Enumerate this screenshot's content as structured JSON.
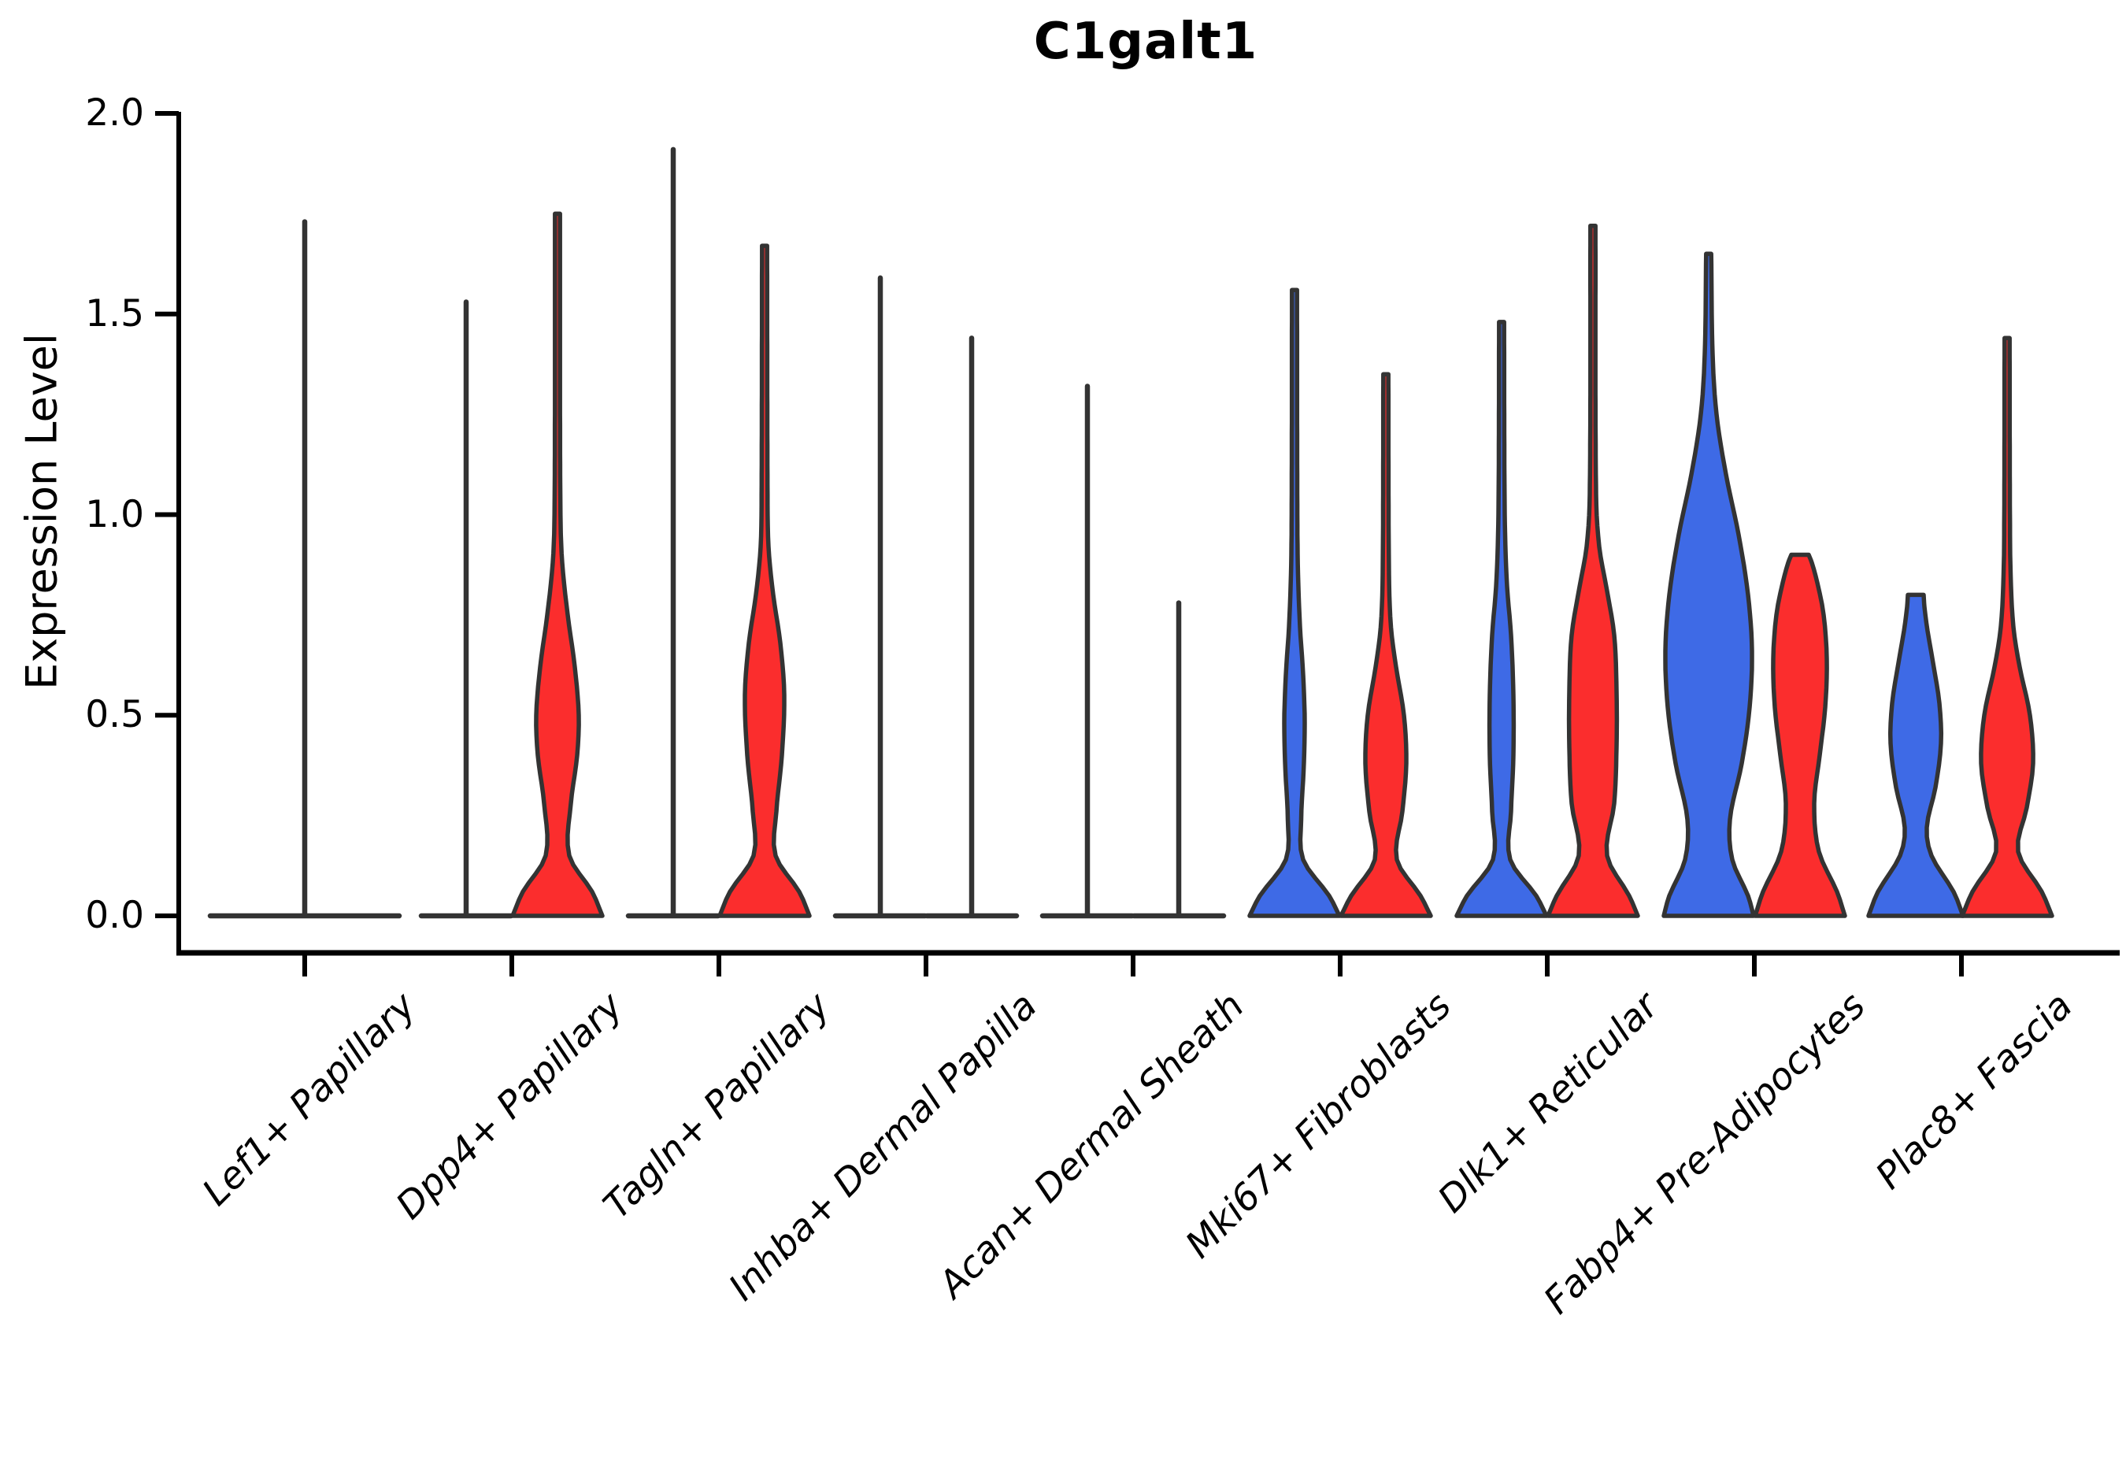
{
  "chart_data": {
    "type": "violin",
    "title": "C1galt1",
    "xlabel": "",
    "ylabel": "Expression Level",
    "ylim": [
      0.0,
      2.0
    ],
    "yticks": [
      0.0,
      0.5,
      1.0,
      1.5,
      2.0
    ],
    "grid": false,
    "legend": "none",
    "split_colors": {
      "blue": "#3E6AE6",
      "red": "#FB2D2D"
    },
    "outline_color": "#333333",
    "categories": [
      "Lef1+ Papillary",
      "Dpp4+ Papillary",
      "Tagln+ Papillary",
      "Inhba+ Dermal Papilla",
      "Acan+ Dermal Sheath",
      "Mki67+ Fibroblasts",
      "Dlk1+ Reticular",
      "Fabp4+ Pre-Adipocytes",
      "Plac8+ Fascia"
    ],
    "groups": [
      {
        "category": "Lef1+ Papillary",
        "violins": [
          {
            "split": "single",
            "fill": "none",
            "shape": "spike",
            "max": 1.73,
            "base_halfwidth": 120
          }
        ]
      },
      {
        "category": "Dpp4+ Papillary",
        "violins": [
          {
            "split": "blue",
            "fill": "blue",
            "shape": "spike",
            "max": 1.53,
            "base_halfwidth": 57
          },
          {
            "split": "red",
            "fill": "red",
            "shape": "violin",
            "max": 1.75,
            "profile": [
              [
                0,
                57
              ],
              [
                0.06,
                44
              ],
              [
                0.15,
                15
              ],
              [
                0.28,
                17
              ],
              [
                0.4,
                25
              ],
              [
                0.5,
                27
              ],
              [
                0.62,
                22
              ],
              [
                0.75,
                13
              ],
              [
                0.88,
                6
              ],
              [
                1.0,
                3.8
              ],
              [
                1.4,
                3.2
              ],
              [
                1.75,
                3.2
              ]
            ]
          }
        ]
      },
      {
        "category": "Tagln+ Papillary",
        "violins": [
          {
            "split": "blue",
            "fill": "blue",
            "shape": "spike",
            "max": 1.91,
            "base_halfwidth": 57
          },
          {
            "split": "red",
            "fill": "red",
            "shape": "violin",
            "max": 1.67,
            "profile": [
              [
                0,
                57
              ],
              [
                0.06,
                44
              ],
              [
                0.15,
                14
              ],
              [
                0.26,
                15
              ],
              [
                0.4,
                22
              ],
              [
                0.55,
                25
              ],
              [
                0.68,
                20
              ],
              [
                0.8,
                11
              ],
              [
                0.92,
                5
              ],
              [
                1.05,
                3.8
              ],
              [
                1.67,
                3.2
              ]
            ]
          }
        ]
      },
      {
        "category": "Inhba+ Dermal Papilla",
        "violins": [
          {
            "split": "blue",
            "fill": "blue",
            "shape": "spike",
            "max": 1.59,
            "base_halfwidth": 57
          },
          {
            "split": "red",
            "fill": "red",
            "shape": "spike",
            "max": 1.44,
            "base_halfwidth": 57
          }
        ]
      },
      {
        "category": "Acan+ Dermal Sheath",
        "violins": [
          {
            "split": "blue",
            "fill": "blue",
            "shape": "spike",
            "max": 1.32,
            "base_halfwidth": 57
          },
          {
            "split": "red",
            "fill": "red",
            "shape": "spike",
            "max": 0.78,
            "base_halfwidth": 57
          }
        ]
      },
      {
        "category": "Mki67+ Fibroblasts",
        "violins": [
          {
            "split": "blue",
            "fill": "blue",
            "shape": "violin",
            "max": 1.56,
            "profile": [
              [
                0,
                57
              ],
              [
                0.05,
                44
              ],
              [
                0.14,
                11
              ],
              [
                0.24,
                8.5
              ],
              [
                0.36,
                11.5
              ],
              [
                0.48,
                13
              ],
              [
                0.6,
                11
              ],
              [
                0.72,
                7
              ],
              [
                0.85,
                4.5
              ],
              [
                1.0,
                3.6
              ],
              [
                1.56,
                3.2
              ]
            ]
          },
          {
            "split": "red",
            "fill": "red",
            "shape": "violin",
            "max": 1.35,
            "profile": [
              [
                0,
                57
              ],
              [
                0.05,
                44
              ],
              [
                0.14,
                14
              ],
              [
                0.26,
                21
              ],
              [
                0.38,
                26
              ],
              [
                0.5,
                23
              ],
              [
                0.62,
                13
              ],
              [
                0.72,
                6.5
              ],
              [
                0.85,
                4
              ],
              [
                1.35,
                3.2
              ]
            ]
          }
        ]
      },
      {
        "category": "Dlk1+ Reticular",
        "violins": [
          {
            "split": "blue",
            "fill": "blue",
            "shape": "violin",
            "max": 1.48,
            "profile": [
              [
                0,
                57
              ],
              [
                0.05,
                44
              ],
              [
                0.14,
                11
              ],
              [
                0.26,
                12
              ],
              [
                0.4,
                15
              ],
              [
                0.55,
                15
              ],
              [
                0.7,
                12
              ],
              [
                0.82,
                7
              ],
              [
                0.95,
                4.5
              ],
              [
                1.1,
                3.6
              ],
              [
                1.48,
                3.2
              ]
            ]
          },
          {
            "split": "red",
            "fill": "red",
            "shape": "violin",
            "max": 1.72,
            "profile": [
              [
                0,
                57
              ],
              [
                0.05,
                46
              ],
              [
                0.15,
                18
              ],
              [
                0.28,
                27
              ],
              [
                0.42,
                30
              ],
              [
                0.56,
                30
              ],
              [
                0.7,
                27
              ],
              [
                0.82,
                17
              ],
              [
                0.92,
                8
              ],
              [
                1.05,
                4
              ],
              [
                1.72,
                3.2
              ]
            ]
          }
        ]
      },
      {
        "category": "Fabp4+ Pre-Adipocytes",
        "violins": [
          {
            "split": "blue",
            "fill": "blue",
            "shape": "violin",
            "max": 1.65,
            "profile": [
              [
                0,
                57
              ],
              [
                0.05,
                50
              ],
              [
                0.14,
                30
              ],
              [
                0.24,
                27
              ],
              [
                0.38,
                42
              ],
              [
                0.52,
                52
              ],
              [
                0.66,
                55
              ],
              [
                0.8,
                50
              ],
              [
                0.95,
                38
              ],
              [
                1.1,
                22
              ],
              [
                1.25,
                10
              ],
              [
                1.4,
                5
              ],
              [
                1.65,
                3.2
              ]
            ]
          },
          {
            "split": "red",
            "fill": "red",
            "shape": "blunt",
            "max": 0.9,
            "profile": [
              [
                0,
                57
              ],
              [
                0.06,
                47
              ],
              [
                0.16,
                24
              ],
              [
                0.28,
                18
              ],
              [
                0.4,
                25
              ],
              [
                0.52,
                32
              ],
              [
                0.64,
                34
              ],
              [
                0.75,
                30
              ],
              [
                0.83,
                22
              ],
              [
                0.88,
                15
              ],
              [
                0.9,
                11
              ]
            ]
          }
        ]
      },
      {
        "category": "Plac8+ Fascia",
        "violins": [
          {
            "split": "blue",
            "fill": "blue",
            "shape": "blunt",
            "max": 0.8,
            "profile": [
              [
                0,
                60
              ],
              [
                0.06,
                48
              ],
              [
                0.15,
                20
              ],
              [
                0.22,
                14
              ],
              [
                0.32,
                25
              ],
              [
                0.43,
                32
              ],
              [
                0.53,
                30
              ],
              [
                0.63,
                22
              ],
              [
                0.71,
                15
              ],
              [
                0.77,
                11
              ],
              [
                0.8,
                10
              ]
            ]
          },
          {
            "split": "red",
            "fill": "red",
            "shape": "violin",
            "max": 1.44,
            "profile": [
              [
                0,
                57
              ],
              [
                0.06,
                44
              ],
              [
                0.16,
                14
              ],
              [
                0.27,
                25
              ],
              [
                0.38,
                33
              ],
              [
                0.5,
                29
              ],
              [
                0.62,
                16
              ],
              [
                0.72,
                8
              ],
              [
                0.85,
                4.5
              ],
              [
                1.0,
                3.6
              ],
              [
                1.44,
                3.2
              ]
            ]
          }
        ]
      }
    ]
  }
}
